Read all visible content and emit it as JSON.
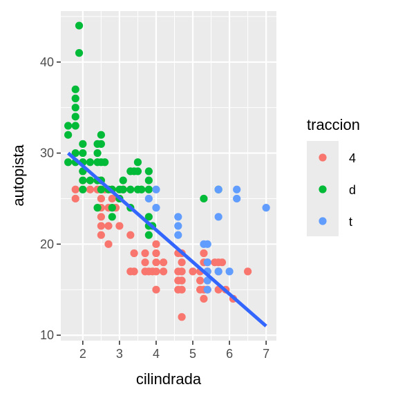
{
  "chart_data": {
    "type": "scatter",
    "xlabel": "cilindrada",
    "ylabel": "autopista",
    "xlim": [
      1.4,
      7.28
    ],
    "ylim": [
      9.4,
      45.6
    ],
    "x_ticks": [
      2,
      3,
      4,
      5,
      6,
      7
    ],
    "y_ticks": [
      10,
      20,
      30,
      40
    ],
    "grid": true,
    "legend": {
      "title": "traccion",
      "position": "right",
      "entries": [
        {
          "label": "4",
          "color": "#F8766D"
        },
        {
          "label": "d",
          "color": "#00BA38"
        },
        {
          "label": "t",
          "color": "#619CFF"
        }
      ]
    },
    "series": [
      {
        "name": "4",
        "color": "#F8766D",
        "points": [
          [
            1.8,
            26
          ],
          [
            1.8,
            25
          ],
          [
            2.0,
            28
          ],
          [
            2.0,
            27
          ],
          [
            2.2,
            26
          ],
          [
            2.4,
            26
          ],
          [
            2.4,
            27
          ],
          [
            2.5,
            27
          ],
          [
            2.5,
            26
          ],
          [
            2.5,
            25
          ],
          [
            2.5,
            24
          ],
          [
            2.5,
            23
          ],
          [
            2.5,
            22
          ],
          [
            2.5,
            21
          ],
          [
            2.6,
            26
          ],
          [
            2.7,
            24
          ],
          [
            2.7,
            22
          ],
          [
            2.7,
            20
          ],
          [
            2.8,
            26
          ],
          [
            2.8,
            25
          ],
          [
            2.9,
            24
          ],
          [
            3.0,
            25
          ],
          [
            3.0,
            22
          ],
          [
            3.1,
            26
          ],
          [
            3.3,
            21
          ],
          [
            3.3,
            17
          ],
          [
            3.4,
            19
          ],
          [
            3.4,
            17
          ],
          [
            3.7,
            19
          ],
          [
            3.7,
            18
          ],
          [
            3.7,
            17
          ],
          [
            3.8,
            17
          ],
          [
            3.9,
            17
          ],
          [
            4.0,
            20
          ],
          [
            4.0,
            19
          ],
          [
            4.0,
            18
          ],
          [
            4.0,
            17
          ],
          [
            4.0,
            15
          ],
          [
            4.2,
            18
          ],
          [
            4.2,
            17
          ],
          [
            4.6,
            19
          ],
          [
            4.6,
            17
          ],
          [
            4.6,
            16
          ],
          [
            4.6,
            15
          ],
          [
            4.7,
            19
          ],
          [
            4.7,
            18
          ],
          [
            4.7,
            17
          ],
          [
            4.7,
            16
          ],
          [
            4.7,
            15
          ],
          [
            4.7,
            12
          ],
          [
            5.0,
            17
          ],
          [
            5.2,
            17
          ],
          [
            5.2,
            16
          ],
          [
            5.2,
            15
          ],
          [
            5.3,
            19
          ],
          [
            5.3,
            18
          ],
          [
            5.3,
            15
          ],
          [
            5.3,
            14
          ],
          [
            5.4,
            18
          ],
          [
            5.4,
            17
          ],
          [
            5.4,
            15
          ],
          [
            5.6,
            18
          ],
          [
            5.7,
            18
          ],
          [
            5.7,
            17
          ],
          [
            5.7,
            15
          ],
          [
            5.8,
            18
          ],
          [
            5.9,
            15
          ],
          [
            6.1,
            14
          ],
          [
            6.5,
            17
          ]
        ]
      },
      {
        "name": "d",
        "color": "#00BA38",
        "points": [
          [
            1.6,
            33
          ],
          [
            1.6,
            32
          ],
          [
            1.6,
            29
          ],
          [
            1.8,
            37
          ],
          [
            1.8,
            36
          ],
          [
            1.8,
            35
          ],
          [
            1.8,
            34
          ],
          [
            1.8,
            33
          ],
          [
            1.8,
            30
          ],
          [
            1.8,
            29
          ],
          [
            1.9,
            44
          ],
          [
            1.9,
            41
          ],
          [
            2.0,
            31
          ],
          [
            2.0,
            30
          ],
          [
            2.0,
            29
          ],
          [
            2.0,
            28
          ],
          [
            2.0,
            27
          ],
          [
            2.0,
            26
          ],
          [
            2.2,
            29
          ],
          [
            2.2,
            27
          ],
          [
            2.4,
            31
          ],
          [
            2.4,
            30
          ],
          [
            2.4,
            29
          ],
          [
            2.4,
            27
          ],
          [
            2.4,
            24
          ],
          [
            2.5,
            32
          ],
          [
            2.5,
            31
          ],
          [
            2.5,
            29
          ],
          [
            2.5,
            27
          ],
          [
            2.5,
            26
          ],
          [
            2.6,
            29
          ],
          [
            2.7,
            26
          ],
          [
            2.8,
            26
          ],
          [
            2.8,
            24
          ],
          [
            2.8,
            23
          ],
          [
            3.0,
            26
          ],
          [
            3.0,
            25
          ],
          [
            3.1,
            27
          ],
          [
            3.1,
            26
          ],
          [
            3.3,
            28
          ],
          [
            3.3,
            26
          ],
          [
            3.3,
            24
          ],
          [
            3.4,
            28
          ],
          [
            3.5,
            29
          ],
          [
            3.5,
            28
          ],
          [
            3.5,
            26
          ],
          [
            3.6,
            26
          ],
          [
            3.8,
            28
          ],
          [
            3.8,
            27
          ],
          [
            3.8,
            26
          ],
          [
            3.8,
            23
          ],
          [
            3.8,
            22
          ],
          [
            3.8,
            21
          ],
          [
            3.9,
            22
          ],
          [
            5.3,
            25
          ],
          [
            5.7,
            26
          ]
        ]
      },
      {
        "name": "t",
        "color": "#619CFF",
        "points": [
          [
            3.8,
            25
          ],
          [
            4.0,
            26
          ],
          [
            4.0,
            24
          ],
          [
            4.6,
            23
          ],
          [
            4.6,
            22
          ],
          [
            4.6,
            21
          ],
          [
            5.3,
            20
          ],
          [
            5.4,
            20
          ],
          [
            5.4,
            18
          ],
          [
            5.4,
            17
          ],
          [
            5.4,
            16
          ],
          [
            5.4,
            15
          ],
          [
            5.7,
            26
          ],
          [
            5.7,
            23
          ],
          [
            5.7,
            17
          ],
          [
            6.0,
            17
          ],
          [
            6.2,
            26
          ],
          [
            6.2,
            25
          ],
          [
            7.0,
            24
          ]
        ]
      }
    ],
    "trend_line": {
      "color": "#3366FF",
      "points": [
        [
          1.6,
          30.0
        ],
        [
          7.0,
          11.0
        ]
      ]
    }
  }
}
